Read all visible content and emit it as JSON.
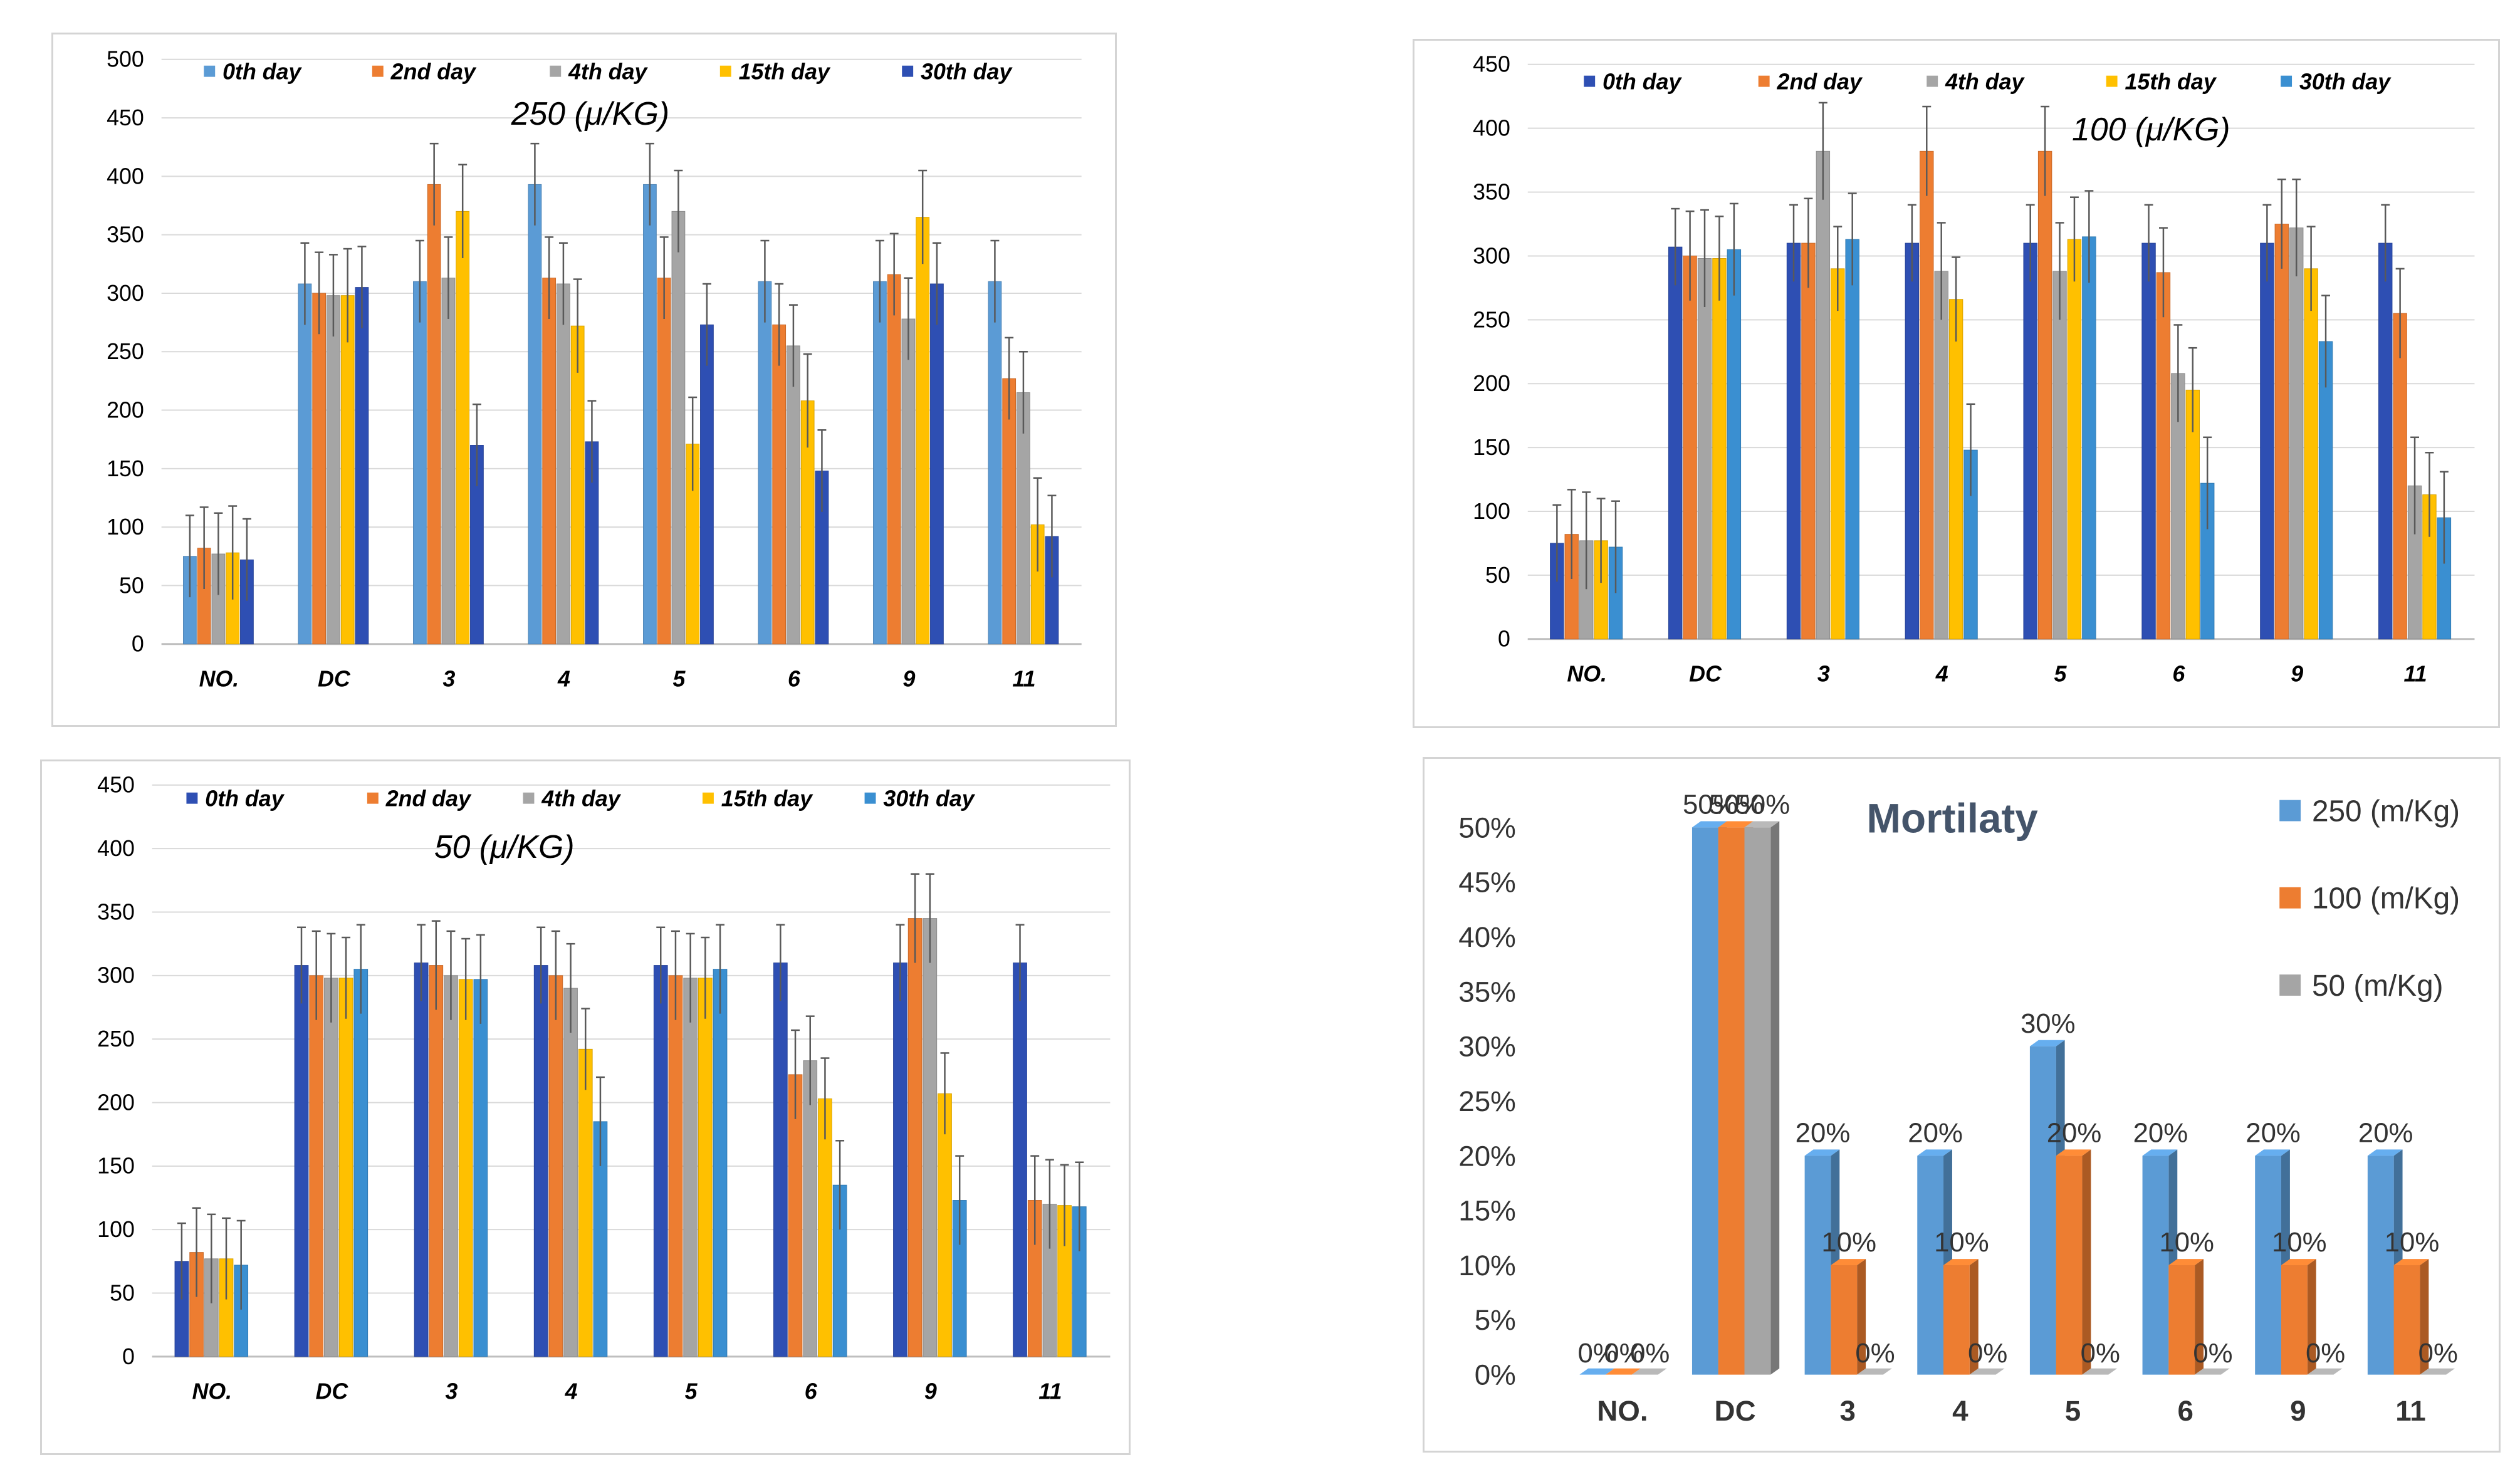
{
  "colors": {
    "light_blue": "#5b9bd5",
    "orange": "#ed7d31",
    "gray": "#a5a5a5",
    "yellow": "#ffc000",
    "dark_blue": "#2e4fb3",
    "grid": "#d9d9d9",
    "error_bar": "#595959"
  },
  "chart_data": [
    {
      "id": "p1",
      "type": "bar",
      "subtitle": "250 (μ/KG)",
      "categories": [
        "NO.",
        "DC",
        "3",
        "4",
        "5",
        "6",
        "9",
        "11"
      ],
      "ylim": [
        0,
        500
      ],
      "yticks": [
        "0",
        "50",
        "100",
        "150",
        "200",
        "250",
        "300",
        "350",
        "400",
        "450",
        "500"
      ],
      "series": [
        {
          "name": "0th day",
          "color": "#5b9bd5",
          "values": [
            75,
            308,
            310,
            393,
            393,
            310,
            310,
            310
          ],
          "errors": [
            35,
            35,
            35,
            35,
            35,
            35,
            35,
            35
          ]
        },
        {
          "name": "2nd day",
          "color": "#ed7d31",
          "values": [
            82,
            300,
            393,
            313,
            313,
            273,
            316,
            227
          ],
          "errors": [
            35,
            35,
            35,
            35,
            35,
            35,
            35,
            35
          ]
        },
        {
          "name": "4th day",
          "color": "#a5a5a5",
          "values": [
            77,
            298,
            313,
            308,
            370,
            255,
            278,
            215
          ],
          "errors": [
            35,
            35,
            35,
            35,
            35,
            35,
            35,
            35
          ]
        },
        {
          "name": "15th day",
          "color": "#ffc000",
          "values": [
            78,
            298,
            370,
            272,
            171,
            208,
            365,
            102
          ],
          "errors": [
            40,
            40,
            40,
            40,
            40,
            40,
            40,
            40
          ]
        },
        {
          "name": "30th day",
          "color": "#2e4fb3",
          "values": [
            72,
            305,
            170,
            173,
            273,
            148,
            308,
            92
          ],
          "errors": [
            35,
            35,
            35,
            35,
            35,
            35,
            35,
            35
          ]
        }
      ]
    },
    {
      "id": "p2",
      "type": "bar",
      "subtitle": "100 (μ/KG)",
      "categories": [
        "NO.",
        "DC",
        "3",
        "4",
        "5",
        "6",
        "9",
        "11"
      ],
      "ylim": [
        0,
        450
      ],
      "yticks": [
        "0",
        "50",
        "100",
        "150",
        "200",
        "250",
        "300",
        "350",
        "400",
        "450"
      ],
      "series": [
        {
          "name": "0th day",
          "color": "#2e4fb3",
          "values": [
            75,
            307,
            310,
            310,
            310,
            310,
            310,
            310
          ],
          "errors": [
            30,
            30,
            30,
            30,
            30,
            30,
            30,
            30
          ]
        },
        {
          "name": "2nd day",
          "color": "#ed7d31",
          "values": [
            82,
            300,
            310,
            382,
            382,
            287,
            325,
            255
          ],
          "errors": [
            35,
            35,
            35,
            35,
            35,
            35,
            35,
            35
          ]
        },
        {
          "name": "4th day",
          "color": "#a5a5a5",
          "values": [
            77,
            298,
            382,
            288,
            288,
            208,
            322,
            120
          ],
          "errors": [
            38,
            38,
            38,
            38,
            38,
            38,
            38,
            38
          ]
        },
        {
          "name": "15th day",
          "color": "#ffc000",
          "values": [
            77,
            298,
            290,
            266,
            313,
            195,
            290,
            113
          ],
          "errors": [
            33,
            33,
            33,
            33,
            33,
            33,
            33,
            33
          ]
        },
        {
          "name": "30th day",
          "color": "#3a8fd1",
          "values": [
            72,
            305,
            313,
            148,
            315,
            122,
            233,
            95
          ],
          "errors": [
            36,
            36,
            36,
            36,
            36,
            36,
            36,
            36
          ]
        }
      ]
    },
    {
      "id": "p3",
      "type": "bar",
      "subtitle": "50 (μ/KG)",
      "categories": [
        "NO.",
        "DC",
        "3",
        "4",
        "5",
        "6",
        "9",
        "11"
      ],
      "ylim": [
        0,
        450
      ],
      "yticks": [
        "0",
        "50",
        "100",
        "150",
        "200",
        "250",
        "300",
        "350",
        "400",
        "450"
      ],
      "series": [
        {
          "name": "0th day",
          "color": "#2e4fb3",
          "values": [
            75,
            308,
            310,
            308,
            308,
            310,
            310,
            310
          ],
          "errors": [
            30,
            30,
            30,
            30,
            30,
            30,
            30,
            30
          ]
        },
        {
          "name": "2nd day",
          "color": "#ed7d31",
          "values": [
            82,
            300,
            308,
            300,
            300,
            222,
            345,
            123
          ],
          "errors": [
            35,
            35,
            35,
            35,
            35,
            35,
            35,
            35
          ]
        },
        {
          "name": "4th day",
          "color": "#a5a5a5",
          "values": [
            77,
            298,
            300,
            290,
            298,
            233,
            345,
            120
          ],
          "errors": [
            35,
            35,
            35,
            35,
            35,
            35,
            35,
            35
          ]
        },
        {
          "name": "15th day",
          "color": "#ffc000",
          "values": [
            77,
            298,
            297,
            242,
            298,
            203,
            207,
            119
          ],
          "errors": [
            32,
            32,
            32,
            32,
            32,
            32,
            32,
            32
          ]
        },
        {
          "name": "30th day",
          "color": "#3a8fd1",
          "values": [
            72,
            305,
            297,
            185,
            305,
            135,
            123,
            118
          ],
          "errors": [
            35,
            35,
            35,
            35,
            35,
            35,
            35,
            35
          ]
        }
      ]
    },
    {
      "id": "p4",
      "type": "bar",
      "title": "Mortilaty",
      "categories": [
        "NO.",
        "DC",
        "3",
        "4",
        "5",
        "6",
        "9",
        "11"
      ],
      "ylim": [
        0,
        50
      ],
      "yticks": [
        "0%",
        "5%",
        "10%",
        "15%",
        "20%",
        "25%",
        "30%",
        "35%",
        "40%",
        "45%",
        "50%"
      ],
      "series": [
        {
          "name": "250 (m/Kg)",
          "color": "#5b9bd5",
          "values": [
            0,
            50,
            20,
            20,
            30,
            20,
            20,
            20
          ],
          "labels": [
            "0%",
            "50%",
            "20%",
            "20%",
            "30%",
            "20%",
            "20%",
            "20%"
          ]
        },
        {
          "name": "100 (m/Kg)",
          "color": "#ed7d31",
          "values": [
            0,
            50,
            10,
            10,
            20,
            10,
            10,
            10
          ],
          "labels": [
            "0%",
            "50%",
            "10%",
            "10%",
            "20%",
            "10%",
            "10%",
            "10%"
          ]
        },
        {
          "name": "50 (m/Kg)",
          "color": "#a5a5a5",
          "values": [
            0,
            50,
            0,
            0,
            0,
            0,
            0,
            0
          ],
          "labels": [
            "0%",
            "50%",
            "0%",
            "0%",
            "0%",
            "0%",
            "0%",
            "0%"
          ]
        }
      ]
    }
  ]
}
